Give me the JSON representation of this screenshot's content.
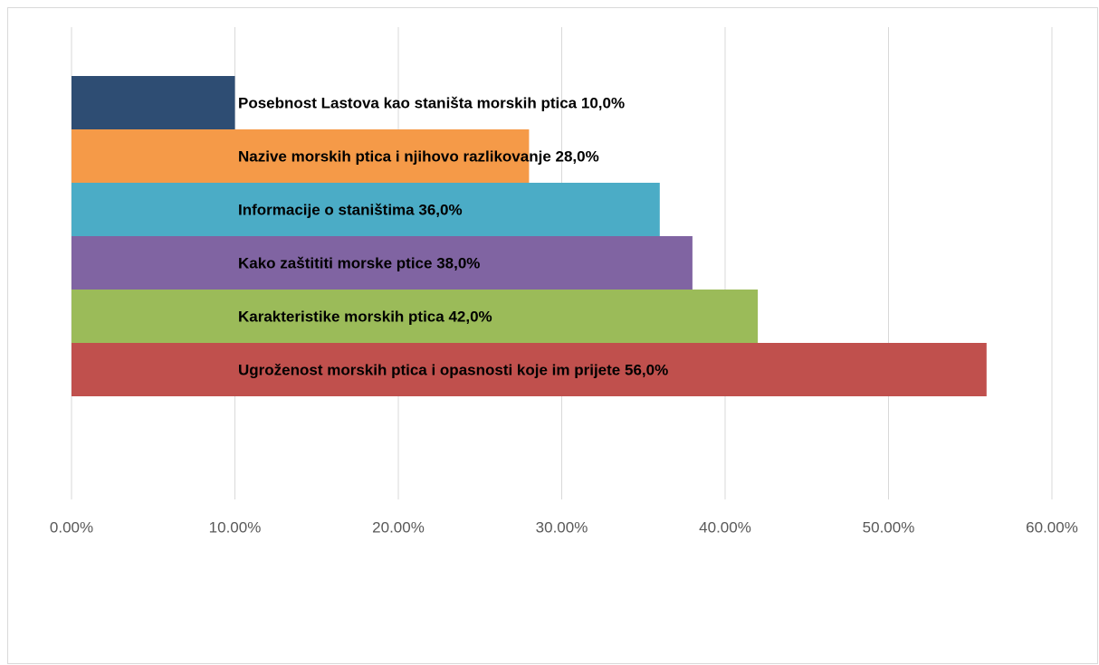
{
  "chart_data": {
    "type": "bar",
    "orientation": "horizontal",
    "categories": [
      "Posebnost Lastova kao staništa morskih ptica",
      "Nazive morskih ptica i njihovo razlikovanje",
      "Informacije o staništima",
      "Kako zaštititi morske ptice",
      "Karakteristike morskih ptica",
      "Ugroženost morskih ptica i opasnosti koje im prijete"
    ],
    "values": [
      10,
      28,
      36,
      38,
      42,
      56
    ],
    "value_labels": [
      "10,0%",
      "28,0%",
      "36,0%",
      "38,0%",
      "42,0%",
      "56,0%"
    ],
    "colors": [
      "#2e4d73",
      "#f59a48",
      "#4bacc6",
      "#8064a2",
      "#9bbb59",
      "#c0504d"
    ],
    "xlim": [
      0,
      60
    ],
    "xticks": [
      {
        "value": 0,
        "label": "0.00%"
      },
      {
        "value": 10,
        "label": "10.00%"
      },
      {
        "value": 20,
        "label": "20.00%"
      },
      {
        "value": 30,
        "label": "30.00%"
      },
      {
        "value": 40,
        "label": "40.00%"
      },
      {
        "value": 50,
        "label": "50.00%"
      },
      {
        "value": 60,
        "label": "60.00%"
      }
    ],
    "grid": true
  }
}
